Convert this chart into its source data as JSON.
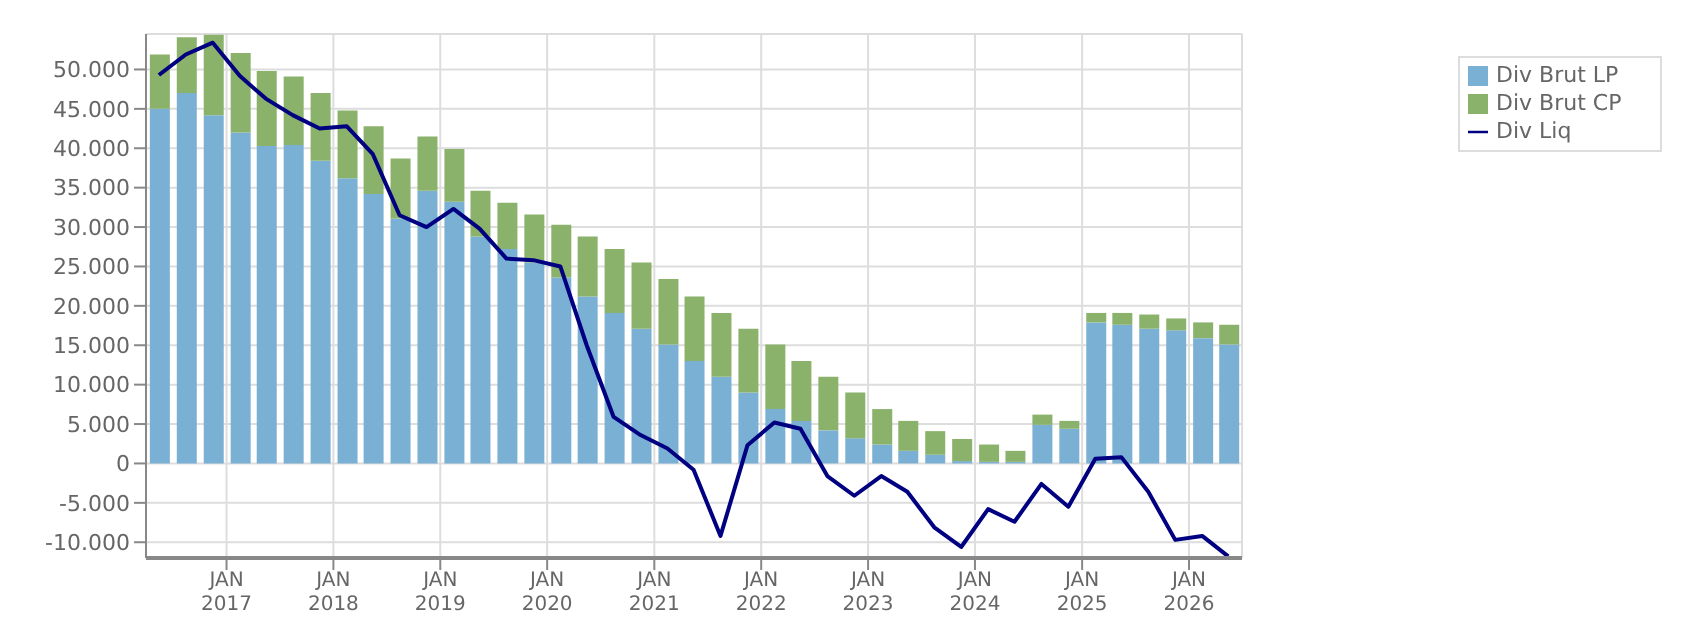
{
  "chart_data": {
    "type": "bar",
    "stacked": true,
    "x": [
      "2016-05-15",
      "2016-08-15",
      "2016-11-15",
      "2017-02-15",
      "2017-05-15",
      "2017-08-15",
      "2017-11-15",
      "2018-02-15",
      "2018-05-15",
      "2018-08-15",
      "2018-11-15",
      "2019-02-15",
      "2019-05-15",
      "2019-08-15",
      "2019-11-15",
      "2020-02-15",
      "2020-05-15",
      "2020-08-15",
      "2020-11-15",
      "2021-02-15",
      "2021-05-15",
      "2021-08-15",
      "2021-11-15",
      "2022-02-15",
      "2022-05-15",
      "2022-08-15",
      "2022-11-15",
      "2023-02-15",
      "2023-05-15",
      "2023-08-15",
      "2023-11-15",
      "2024-02-15",
      "2024-05-15",
      "2024-08-15",
      "2024-11-15",
      "2025-02-15",
      "2025-05-15",
      "2025-08-15",
      "2025-11-15",
      "2026-02-15",
      "2026-05-15"
    ],
    "series": [
      {
        "name": "Div Brut LP",
        "color": "#7ab0d4",
        "values": [
          45000,
          47000,
          44200,
          42000,
          40300,
          40400,
          38400,
          36200,
          34200,
          31100,
          34600,
          33200,
          28800,
          27200,
          25500,
          23600,
          21200,
          19100,
          17100,
          15100,
          13000,
          11000,
          9000,
          6900,
          5400,
          4200,
          3200,
          2400,
          1600,
          1100,
          300,
          200,
          200,
          4900,
          4400,
          17900,
          17600,
          17100,
          16900,
          15900,
          15100
        ]
      },
      {
        "name": "Div Brut CP",
        "color": "#8bb26b",
        "values": [
          6900,
          7100,
          10200,
          10100,
          9500,
          8700,
          8600,
          8600,
          8600,
          7600,
          6900,
          6700,
          5800,
          5900,
          6100,
          6700,
          7600,
          8100,
          8400,
          8300,
          8200,
          8100,
          8100,
          8200,
          7600,
          6800,
          5800,
          4500,
          3800,
          3000,
          2800,
          2200,
          1400,
          1300,
          1000,
          1200,
          1500,
          1800,
          1500,
          2000,
          2500
        ]
      },
      {
        "name": "Div Liq",
        "type": "line",
        "color": "#000080",
        "values": [
          49300,
          51900,
          53400,
          49200,
          46300,
          44200,
          42500,
          42800,
          39300,
          31500,
          30000,
          32300,
          29800,
          26000,
          25800,
          25000,
          15000,
          5900,
          3600,
          1900,
          -800,
          -9200,
          2300,
          5200,
          4400,
          -1600,
          -4100,
          -1600,
          -3600,
          -8100,
          -10600,
          -5800,
          -7400,
          -2600,
          -5500,
          600,
          800,
          -3600,
          -9700,
          -9200,
          -11800
        ]
      }
    ],
    "xlim": [
      "2016-04-01",
      "2026-07-01"
    ],
    "xticks": [
      {
        "value": "2017-01-01",
        "label": "JAN\n2017"
      },
      {
        "value": "2018-01-01",
        "label": "JAN\n2018"
      },
      {
        "value": "2019-01-01",
        "label": "JAN\n2019"
      },
      {
        "value": "2020-01-01",
        "label": "JAN\n2020"
      },
      {
        "value": "2021-01-01",
        "label": "JAN\n2021"
      },
      {
        "value": "2022-01-01",
        "label": "JAN\n2022"
      },
      {
        "value": "2023-01-01",
        "label": "JAN\n2023"
      },
      {
        "value": "2024-01-01",
        "label": "JAN\n2024"
      },
      {
        "value": "2025-01-01",
        "label": "JAN\n2025"
      },
      {
        "value": "2026-01-01",
        "label": "JAN\n2026"
      }
    ],
    "ylim": [
      -12000,
      54500
    ],
    "yticks": [
      {
        "value": -10000,
        "label": "-10.000"
      },
      {
        "value": -5000,
        "label": "-5.000"
      },
      0,
      {
        "value": 5000,
        "label": "5.000"
      },
      {
        "value": 10000,
        "label": "10.000"
      },
      {
        "value": 15000,
        "label": "15.000"
      },
      {
        "value": 20000,
        "label": "20.000"
      },
      {
        "value": 25000,
        "label": "25.000"
      },
      {
        "value": 30000,
        "label": "30.000"
      },
      {
        "value": 35000,
        "label": "35.000"
      },
      {
        "value": 40000,
        "label": "40.000"
      },
      {
        "value": 45000,
        "label": "45.000"
      },
      {
        "value": 50000,
        "label": "50.000"
      }
    ],
    "grid": true,
    "legend": "top right",
    "marker": "none"
  }
}
